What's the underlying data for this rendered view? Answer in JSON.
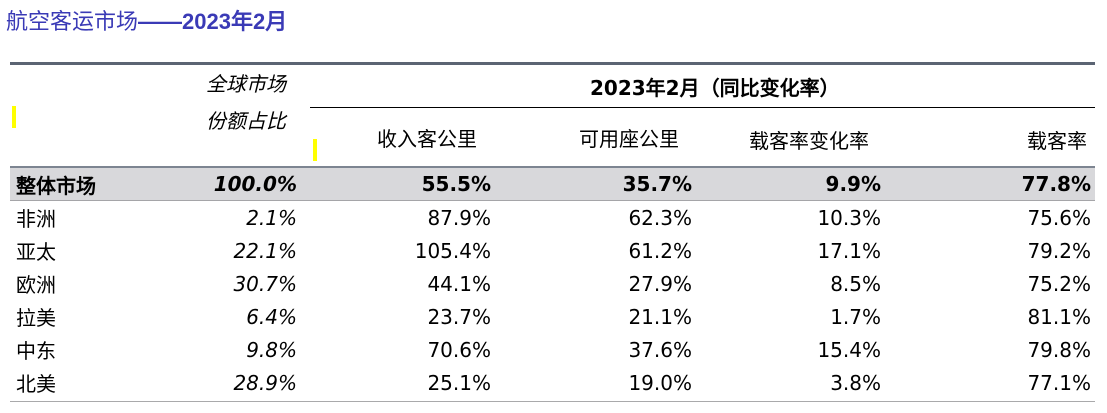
{
  "title": {
    "prefix": "航空客运市场",
    "dash": "——",
    "suffix": "2023年2月"
  },
  "header": {
    "share_line1": "全球市场",
    "share_line2": "份额占比",
    "period": "2023年2月（同比变化率）",
    "columns": [
      "收入客公里",
      "可用座公里",
      "载客率变化率",
      "载客率"
    ]
  },
  "total": {
    "region": "整体市场",
    "share": "100.0%",
    "rpk": "55.5%",
    "ask": "35.7%",
    "plf_change": "9.9%",
    "plf": "77.8%"
  },
  "rows": [
    {
      "region": "非洲",
      "share": "2.1%",
      "rpk": "87.9%",
      "ask": "62.3%",
      "plf_change": "10.3%",
      "plf": "75.6%"
    },
    {
      "region": "亚太",
      "share": "22.1%",
      "rpk": "105.4%",
      "ask": "61.2%",
      "plf_change": "17.1%",
      "plf": "79.2%"
    },
    {
      "region": "欧洲",
      "share": "30.7%",
      "rpk": "44.1%",
      "ask": "27.9%",
      "plf_change": "8.5%",
      "plf": "75.2%"
    },
    {
      "region": "拉美",
      "share": "6.4%",
      "rpk": "23.7%",
      "ask": "21.1%",
      "plf_change": "1.7%",
      "plf": "81.1%"
    },
    {
      "region": "中东",
      "share": "9.8%",
      "rpk": "70.6%",
      "ask": "37.6%",
      "plf_change": "15.4%",
      "plf": "79.8%"
    },
    {
      "region": "北美",
      "share": "28.9%",
      "rpk": "25.1%",
      "ask": "19.0%",
      "plf_change": "3.8%",
      "plf": "77.1%"
    }
  ],
  "colors": {
    "title": "#3a3ab6",
    "total_row_bg": "#d8d8db",
    "marker": "#ffff00"
  }
}
